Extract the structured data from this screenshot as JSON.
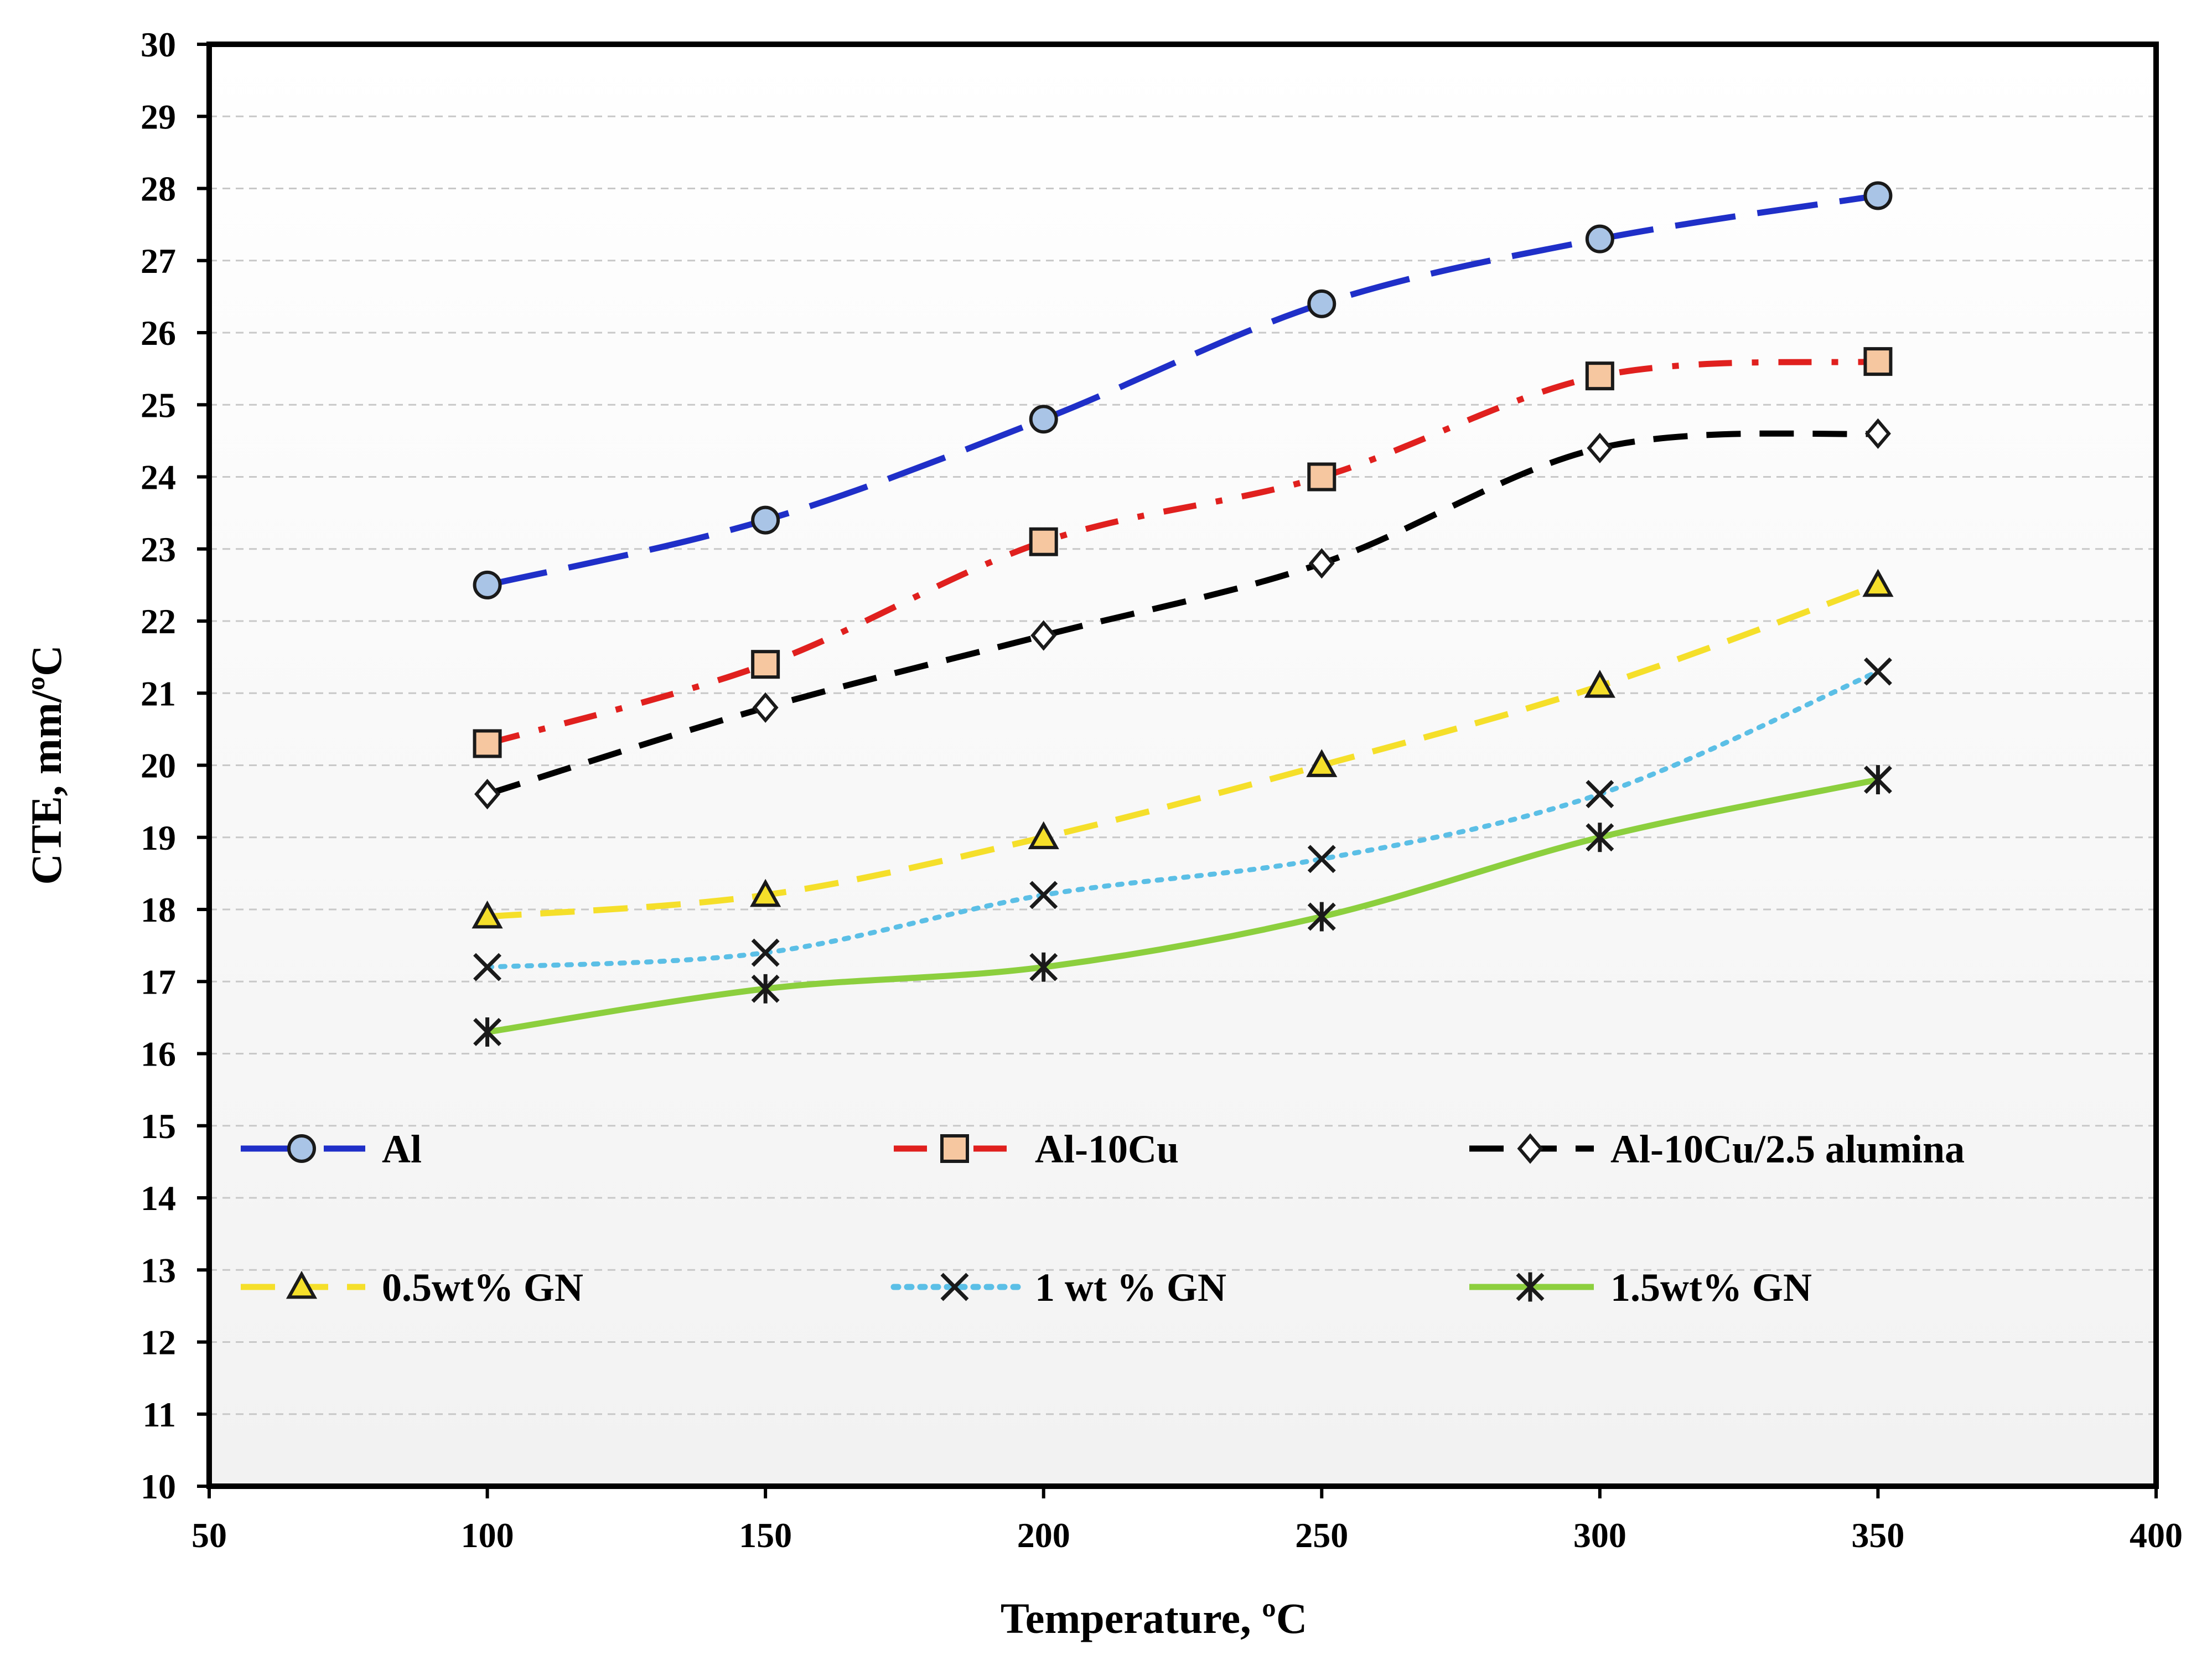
{
  "chart_data": {
    "type": "line",
    "title": "",
    "xlabel": "Temperature, ºC",
    "ylabel": "CTE, mm/ºC",
    "xlim": [
      50,
      400
    ],
    "ylim": [
      10,
      30
    ],
    "x_ticks": [
      "50",
      "100",
      "150",
      "200",
      "250",
      "300",
      "350",
      "400"
    ],
    "y_ticks": [
      "10",
      "11",
      "12",
      "13",
      "14",
      "15",
      "16",
      "17",
      "18",
      "19",
      "20",
      "21",
      "22",
      "23",
      "24",
      "25",
      "26",
      "27",
      "28",
      "29",
      "30"
    ],
    "grid": true,
    "legend_position": "inside-bottom",
    "x": [
      100,
      150,
      200,
      250,
      300,
      350
    ],
    "series": [
      {
        "name": "Al",
        "values": [
          22.5,
          23.4,
          24.8,
          26.4,
          27.3,
          27.9
        ],
        "color": "#1f2fc8",
        "marker": "circle",
        "marker_fill": "#a9c4e6",
        "line_style": "long-dash"
      },
      {
        "name": "Al-10Cu",
        "values": [
          20.3,
          21.4,
          23.1,
          24.0,
          25.4,
          25.6
        ],
        "color": "#e0201e",
        "marker": "square",
        "marker_fill": "#f6c7a0",
        "line_style": "dash-dot"
      },
      {
        "name": "Al-10Cu/2.5 alumina",
        "values": [
          19.6,
          20.8,
          21.8,
          22.8,
          24.4,
          24.6
        ],
        "color": "#000000",
        "marker": "diamond",
        "marker_fill": "#ffffff",
        "line_style": "dash"
      },
      {
        "name": "0.5wt% GN",
        "values": [
          17.9,
          18.2,
          19.0,
          20.0,
          21.1,
          22.5
        ],
        "color": "#f5df2a",
        "marker": "triangle",
        "marker_fill": "#f5df2a",
        "line_style": "dash"
      },
      {
        "name": "1  wt  % GN",
        "values": [
          17.2,
          17.4,
          18.2,
          18.7,
          19.6,
          21.3
        ],
        "color": "#5bbfe6",
        "marker": "x",
        "marker_fill": "none",
        "line_style": "dot"
      },
      {
        "name": "1.5wt% GN",
        "values": [
          16.3,
          16.9,
          17.2,
          17.9,
          19.0,
          19.8
        ],
        "color": "#8ccf3e",
        "marker": "star",
        "marker_fill": "none",
        "line_style": "solid"
      }
    ]
  }
}
